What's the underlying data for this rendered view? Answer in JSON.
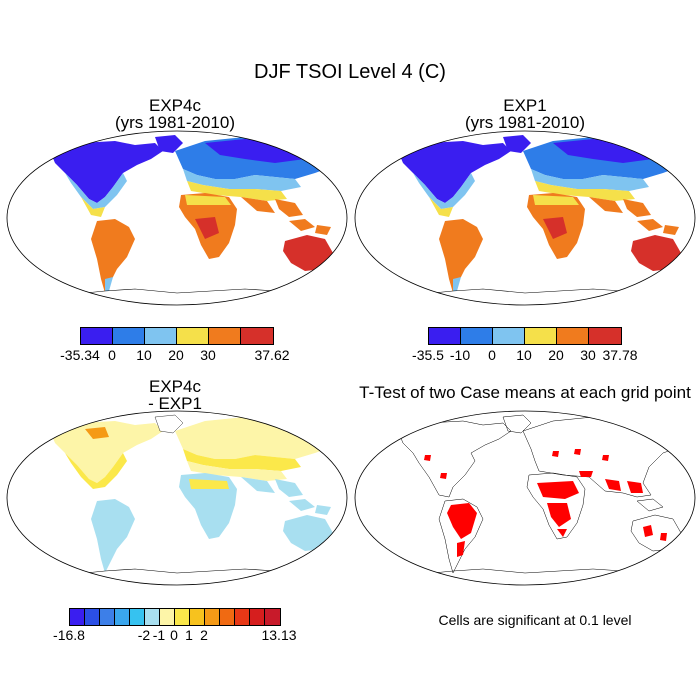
{
  "title": "DJF TSOI Level 4 (C)",
  "panels": [
    {
      "title": "EXP4c",
      "subtitle": "(yrs 1981-2010)"
    },
    {
      "title": "EXP1",
      "subtitle": "(yrs 1981-2010)"
    },
    {
      "title": "EXP4c",
      "subtitle": "- EXP1"
    },
    {
      "title": "T-Test of two Case means at each grid point",
      "subtitle": ""
    }
  ],
  "colorbars": [
    {
      "ticks": [
        "-35.34",
        "0",
        "10",
        "20",
        "30",
        "37.62"
      ],
      "colors": [
        "#3a1ef0",
        "#2e7de8",
        "#7fc4f0",
        "#f5e04a",
        "#f07b1e",
        "#d6302a"
      ]
    },
    {
      "ticks": [
        "-35.5",
        "-10",
        "0",
        "10",
        "20",
        "30",
        "37.78"
      ],
      "colors": [
        "#3a1ef0",
        "#2e7de8",
        "#7fc4f0",
        "#f5e04a",
        "#f07b1e",
        "#d6302a"
      ]
    },
    {
      "ticks": [
        "-16.8",
        "-2",
        "-1",
        "0",
        "1",
        "2",
        "13.13"
      ],
      "colors": [
        "#3a1ef0",
        "#2b4fe6",
        "#3d7fe8",
        "#3aa6ee",
        "#36c2f0",
        "#a8dff0",
        "#fdf5a8",
        "#fbe84a",
        "#f7c21e",
        "#f59a16",
        "#f06a12",
        "#e83816",
        "#d61e1e",
        "#c81a2a"
      ]
    }
  ],
  "note": "Cells are significant at 0.1 level"
}
